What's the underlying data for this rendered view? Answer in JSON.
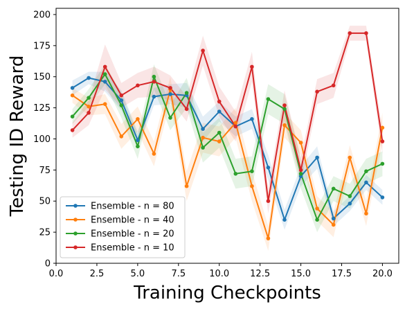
{
  "chart_data": {
    "type": "line",
    "xlabel": "Training Checkpoints",
    "ylabel": "Testing ID Reward",
    "xlim": [
      0,
      21
    ],
    "ylim": [
      0,
      205
    ],
    "xticks": [
      "0.0",
      "2.5",
      "5.0",
      "7.5",
      "10.0",
      "12.5",
      "15.0",
      "17.5",
      "20.0"
    ],
    "yticks": [
      "0",
      "25",
      "50",
      "75",
      "100",
      "125",
      "150",
      "175",
      "200"
    ],
    "grid": false,
    "legend_position": "lower-left",
    "x": [
      1,
      2,
      3,
      4,
      5,
      6,
      7,
      8,
      9,
      10,
      11,
      12,
      13,
      14,
      15,
      16,
      17,
      18,
      19,
      20
    ],
    "series": [
      {
        "name": "Ensemble - n = 80",
        "color": "#1f77b4",
        "values": [
          141,
          149,
          146,
          131,
          99,
          134,
          136,
          135,
          108,
          122,
          110,
          116,
          77,
          35,
          70,
          85,
          36,
          48,
          65,
          53
        ],
        "band": [
          6,
          5,
          8,
          8,
          7,
          7,
          8,
          10,
          10,
          8,
          8,
          8,
          10,
          8,
          8,
          9,
          6,
          6,
          6,
          6
        ]
      },
      {
        "name": "Ensemble - n = 40",
        "color": "#ff7f0e",
        "values": [
          135,
          126,
          128,
          102,
          116,
          88,
          140,
          62,
          101,
          98,
          113,
          62,
          20,
          111,
          97,
          44,
          31,
          85,
          40,
          109
        ],
        "band": [
          6,
          7,
          8,
          10,
          10,
          10,
          10,
          12,
          12,
          12,
          12,
          12,
          10,
          10,
          10,
          10,
          10,
          10,
          10,
          12
        ]
      },
      {
        "name": "Ensemble - n = 20",
        "color": "#2ca02c",
        "values": [
          118,
          133,
          152,
          127,
          94,
          150,
          117,
          137,
          93,
          105,
          72,
          74,
          132,
          124,
          72,
          35,
          60,
          54,
          74,
          80
        ],
        "band": [
          6,
          7,
          8,
          10,
          10,
          10,
          10,
          12,
          12,
          12,
          12,
          12,
          12,
          12,
          12,
          10,
          10,
          10,
          10,
          10
        ]
      },
      {
        "name": "Ensemble - n = 10",
        "color": "#d62728",
        "values": [
          107,
          121,
          158,
          135,
          143,
          146,
          141,
          124,
          171,
          130,
          110,
          158,
          50,
          127,
          75,
          138,
          143,
          185,
          185,
          98
        ],
        "band": [
          6,
          10,
          18,
          10,
          10,
          12,
          10,
          10,
          12,
          12,
          12,
          12,
          10,
          12,
          10,
          10,
          10,
          6,
          6,
          10
        ]
      }
    ]
  }
}
